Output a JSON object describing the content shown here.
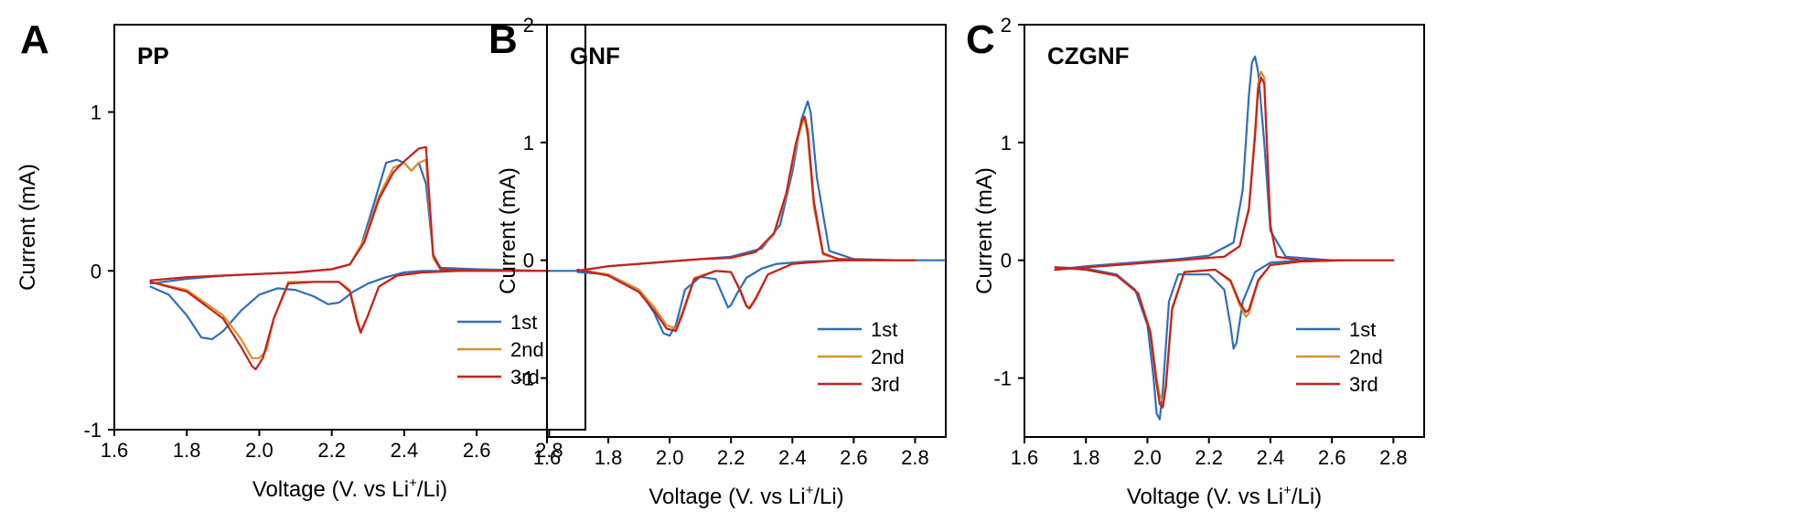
{
  "figure": {
    "series_colors": {
      "1st": "#2f6eba",
      "2nd": "#d9902b",
      "3rd": "#c5211f"
    }
  },
  "chart_data": [
    {
      "type": "line",
      "panel_letter": "A",
      "title": "PP",
      "xlabel": {
        "prefix": "Voltage (V. vs Li",
        "sup": "+",
        "suffix": "/Li)"
      },
      "ylabel": "Current (mA)",
      "xlim": [
        1.6,
        2.9
      ],
      "ylim": [
        -1.0,
        1.55
      ],
      "xticks": [
        "1.6",
        "1.8",
        "2.0",
        "2.2",
        "2.4",
        "2.6",
        "2.8"
      ],
      "yticks": [
        "-1",
        "0",
        "1"
      ],
      "legend_position": "bottom-right",
      "series": [
        {
          "name": "1st",
          "color": "#2f6eba",
          "x": [
            1.7,
            1.75,
            1.8,
            1.84,
            1.87,
            1.9,
            1.95,
            2.0,
            2.05,
            2.1,
            2.15,
            2.19,
            2.22,
            2.26,
            2.3,
            2.35,
            2.4,
            2.45,
            2.5,
            2.6,
            2.7,
            2.8,
            2.88,
            2.8,
            2.6,
            2.5,
            2.48,
            2.46,
            2.44,
            2.42,
            2.4,
            2.38,
            2.35,
            2.32,
            2.28,
            2.25,
            2.2,
            2.1,
            2.0,
            1.9,
            1.8,
            1.7
          ],
          "y": [
            -0.1,
            -0.15,
            -0.28,
            -0.42,
            -0.43,
            -0.38,
            -0.25,
            -0.15,
            -0.11,
            -0.12,
            -0.16,
            -0.21,
            -0.2,
            -0.13,
            -0.08,
            -0.04,
            -0.01,
            0.0,
            0.0,
            0.0,
            0.0,
            0.0,
            0.0,
            0.0,
            0.01,
            0.02,
            0.1,
            0.55,
            0.68,
            0.63,
            0.68,
            0.7,
            0.68,
            0.45,
            0.15,
            0.04,
            0.01,
            -0.01,
            -0.02,
            -0.03,
            -0.05,
            -0.08
          ]
        },
        {
          "name": "2nd",
          "color": "#d9902b",
          "x": [
            1.7,
            1.8,
            1.9,
            1.95,
            1.98,
            2.0,
            2.02,
            2.04,
            2.08,
            2.15,
            2.22,
            2.25,
            2.27,
            2.28,
            2.3,
            2.33,
            2.38,
            2.45,
            2.55,
            2.7,
            2.8,
            2.6,
            2.5,
            2.48,
            2.46,
            2.44,
            2.42,
            2.4,
            2.37,
            2.33,
            2.29,
            2.25,
            2.2,
            2.1,
            2.0,
            1.9,
            1.8,
            1.7
          ],
          "y": [
            -0.07,
            -0.12,
            -0.28,
            -0.43,
            -0.55,
            -0.55,
            -0.5,
            -0.3,
            -0.07,
            -0.07,
            -0.07,
            -0.12,
            -0.3,
            -0.38,
            -0.28,
            -0.1,
            -0.03,
            -0.01,
            0.0,
            0.0,
            0.0,
            0.0,
            0.01,
            0.08,
            0.7,
            0.68,
            0.63,
            0.68,
            0.65,
            0.47,
            0.2,
            0.04,
            0.01,
            -0.01,
            -0.02,
            -0.03,
            -0.04,
            -0.06
          ]
        },
        {
          "name": "3rd",
          "color": "#c5211f",
          "x": [
            1.7,
            1.8,
            1.9,
            1.95,
            1.98,
            1.99,
            2.01,
            2.04,
            2.08,
            2.15,
            2.22,
            2.25,
            2.27,
            2.28,
            2.3,
            2.33,
            2.38,
            2.45,
            2.55,
            2.7,
            2.8,
            2.6,
            2.5,
            2.48,
            2.46,
            2.44,
            2.42,
            2.4,
            2.37,
            2.33,
            2.29,
            2.25,
            2.2,
            2.1,
            2.0,
            1.9,
            1.8,
            1.7
          ],
          "y": [
            -0.07,
            -0.13,
            -0.3,
            -0.48,
            -0.6,
            -0.62,
            -0.55,
            -0.3,
            -0.08,
            -0.07,
            -0.07,
            -0.13,
            -0.32,
            -0.39,
            -0.28,
            -0.1,
            -0.03,
            -0.01,
            0.0,
            0.0,
            0.0,
            0.0,
            0.01,
            0.1,
            0.78,
            0.77,
            0.73,
            0.69,
            0.62,
            0.45,
            0.18,
            0.04,
            0.01,
            -0.01,
            -0.02,
            -0.03,
            -0.04,
            -0.06
          ]
        }
      ]
    },
    {
      "type": "line",
      "panel_letter": "B",
      "title": "GNF",
      "xlabel": {
        "prefix": "Voltage (V. vs Li",
        "sup": "+",
        "suffix": "/Li)"
      },
      "ylabel": "Current (mA)",
      "xlim": [
        1.6,
        2.9
      ],
      "ylim": [
        -1.5,
        2.0
      ],
      "xticks": [
        "1.6",
        "1.8",
        "2.0",
        "2.2",
        "2.4",
        "2.6",
        "2.8"
      ],
      "yticks": [
        "-1",
        "0",
        "1",
        "2"
      ],
      "legend_position": "bottom-right",
      "series": [
        {
          "name": "1st",
          "color": "#2f6eba",
          "x": [
            1.7,
            1.8,
            1.9,
            1.95,
            1.98,
            2.0,
            2.02,
            2.05,
            2.1,
            2.15,
            2.17,
            2.19,
            2.2,
            2.22,
            2.25,
            2.3,
            2.35,
            2.45,
            2.6,
            2.75,
            2.9,
            2.75,
            2.6,
            2.52,
            2.48,
            2.46,
            2.45,
            2.43,
            2.4,
            2.36,
            2.3,
            2.2,
            2.1,
            2.0,
            1.9,
            1.8,
            1.7
          ],
          "y": [
            -0.1,
            -0.12,
            -0.25,
            -0.45,
            -0.62,
            -0.64,
            -0.55,
            -0.25,
            -0.14,
            -0.16,
            -0.28,
            -0.4,
            -0.38,
            -0.28,
            -0.15,
            -0.07,
            -0.03,
            -0.01,
            0.0,
            0.0,
            0.0,
            0.0,
            0.01,
            0.08,
            0.7,
            1.25,
            1.35,
            1.2,
            0.75,
            0.3,
            0.1,
            0.03,
            0.01,
            -0.01,
            -0.03,
            -0.05,
            -0.09
          ]
        },
        {
          "name": "2nd",
          "color": "#d9902b",
          "x": [
            1.7,
            1.8,
            1.9,
            1.95,
            1.99,
            2.02,
            2.04,
            2.08,
            2.15,
            2.2,
            2.23,
            2.25,
            2.26,
            2.28,
            2.32,
            2.4,
            2.55,
            2.7,
            2.8,
            2.7,
            2.55,
            2.5,
            2.47,
            2.45,
            2.44,
            2.43,
            2.41,
            2.38,
            2.34,
            2.28,
            2.2,
            2.1,
            2.0,
            1.9,
            1.8,
            1.7
          ],
          "y": [
            -0.08,
            -0.12,
            -0.25,
            -0.4,
            -0.55,
            -0.58,
            -0.45,
            -0.15,
            -0.09,
            -0.1,
            -0.25,
            -0.38,
            -0.4,
            -0.32,
            -0.12,
            -0.03,
            0.0,
            0.0,
            0.0,
            0.0,
            0.01,
            0.05,
            0.45,
            1.05,
            1.2,
            1.15,
            0.95,
            0.55,
            0.22,
            0.07,
            0.02,
            0.01,
            -0.01,
            -0.03,
            -0.05,
            -0.09
          ]
        },
        {
          "name": "3rd",
          "color": "#c5211f",
          "x": [
            1.7,
            1.8,
            1.9,
            1.95,
            1.99,
            2.02,
            2.04,
            2.08,
            2.15,
            2.2,
            2.23,
            2.25,
            2.26,
            2.28,
            2.32,
            2.4,
            2.55,
            2.7,
            2.8,
            2.7,
            2.55,
            2.5,
            2.47,
            2.45,
            2.44,
            2.43,
            2.41,
            2.38,
            2.34,
            2.28,
            2.2,
            2.1,
            2.0,
            1.9,
            1.8,
            1.7
          ],
          "y": [
            -0.08,
            -0.13,
            -0.27,
            -0.43,
            -0.58,
            -0.6,
            -0.47,
            -0.16,
            -0.09,
            -0.1,
            -0.26,
            -0.39,
            -0.41,
            -0.33,
            -0.12,
            -0.03,
            0.0,
            0.0,
            0.0,
            0.0,
            0.01,
            0.06,
            0.5,
            1.1,
            1.22,
            1.18,
            0.98,
            0.57,
            0.23,
            0.07,
            0.02,
            0.01,
            -0.01,
            -0.03,
            -0.05,
            -0.09
          ]
        }
      ]
    },
    {
      "type": "line",
      "panel_letter": "C",
      "title": "CZGNF",
      "xlabel": {
        "prefix": "Voltage (V. vs Li",
        "sup": "+",
        "suffix": "/Li)"
      },
      "ylabel": "Current (mA)",
      "xlim": [
        1.6,
        2.9
      ],
      "ylim": [
        -1.5,
        2.0
      ],
      "xticks": [
        "1.6",
        "1.8",
        "2.0",
        "2.2",
        "2.4",
        "2.6",
        "2.8"
      ],
      "yticks": [
        "-1",
        "0",
        "1",
        "2"
      ],
      "legend_position": "bottom-right",
      "series": [
        {
          "name": "1st",
          "color": "#2f6eba",
          "x": [
            1.7,
            1.8,
            1.9,
            1.96,
            2.0,
            2.02,
            2.03,
            2.04,
            2.05,
            2.07,
            2.1,
            2.2,
            2.25,
            2.27,
            2.28,
            2.29,
            2.31,
            2.35,
            2.4,
            2.5,
            2.6,
            2.8,
            2.6,
            2.45,
            2.4,
            2.38,
            2.36,
            2.35,
            2.34,
            2.33,
            2.31,
            2.28,
            2.2,
            2.1,
            2.0,
            1.9,
            1.8,
            1.7
          ],
          "y": [
            -0.06,
            -0.07,
            -0.12,
            -0.25,
            -0.55,
            -1.0,
            -1.3,
            -1.35,
            -1.1,
            -0.35,
            -0.12,
            -0.12,
            -0.25,
            -0.55,
            -0.75,
            -0.7,
            -0.35,
            -0.1,
            -0.02,
            0.0,
            0.0,
            0.0,
            0.0,
            0.03,
            0.25,
            1.0,
            1.6,
            1.73,
            1.68,
            1.4,
            0.6,
            0.15,
            0.04,
            0.01,
            -0.01,
            -0.03,
            -0.05,
            -0.08
          ]
        },
        {
          "name": "2nd",
          "color": "#d9902b",
          "x": [
            1.7,
            1.8,
            1.9,
            1.97,
            2.01,
            2.03,
            2.04,
            2.05,
            2.06,
            2.08,
            2.12,
            2.22,
            2.27,
            2.3,
            2.32,
            2.33,
            2.36,
            2.4,
            2.5,
            2.65,
            2.8,
            2.65,
            2.5,
            2.42,
            2.4,
            2.39,
            2.38,
            2.37,
            2.36,
            2.35,
            2.33,
            2.3,
            2.25,
            2.15,
            2.05,
            1.95,
            1.85,
            1.7
          ],
          "y": [
            -0.06,
            -0.08,
            -0.13,
            -0.28,
            -0.6,
            -1.0,
            -1.15,
            -1.2,
            -1.05,
            -0.4,
            -0.1,
            -0.08,
            -0.18,
            -0.38,
            -0.48,
            -0.45,
            -0.18,
            -0.04,
            -0.01,
            0.0,
            0.0,
            0.0,
            0.0,
            0.03,
            0.3,
            0.9,
            1.55,
            1.6,
            1.5,
            1.1,
            0.45,
            0.12,
            0.03,
            0.01,
            -0.01,
            -0.03,
            -0.05,
            -0.08
          ]
        },
        {
          "name": "3rd",
          "color": "#c5211f",
          "x": [
            1.7,
            1.8,
            1.9,
            1.97,
            2.01,
            2.03,
            2.04,
            2.05,
            2.06,
            2.08,
            2.12,
            2.22,
            2.27,
            2.3,
            2.32,
            2.33,
            2.36,
            2.4,
            2.5,
            2.65,
            2.8,
            2.65,
            2.5,
            2.42,
            2.4,
            2.39,
            2.38,
            2.37,
            2.36,
            2.35,
            2.33,
            2.3,
            2.25,
            2.15,
            2.05,
            1.95,
            1.85,
            1.7
          ],
          "y": [
            -0.06,
            -0.08,
            -0.13,
            -0.28,
            -0.62,
            -1.05,
            -1.22,
            -1.25,
            -1.08,
            -0.42,
            -0.1,
            -0.08,
            -0.17,
            -0.36,
            -0.44,
            -0.42,
            -0.17,
            -0.04,
            -0.01,
            0.0,
            0.0,
            0.0,
            0.0,
            0.03,
            0.3,
            0.9,
            1.5,
            1.55,
            1.45,
            1.05,
            0.43,
            0.12,
            0.03,
            0.01,
            -0.01,
            -0.03,
            -0.05,
            -0.08
          ]
        }
      ]
    }
  ]
}
